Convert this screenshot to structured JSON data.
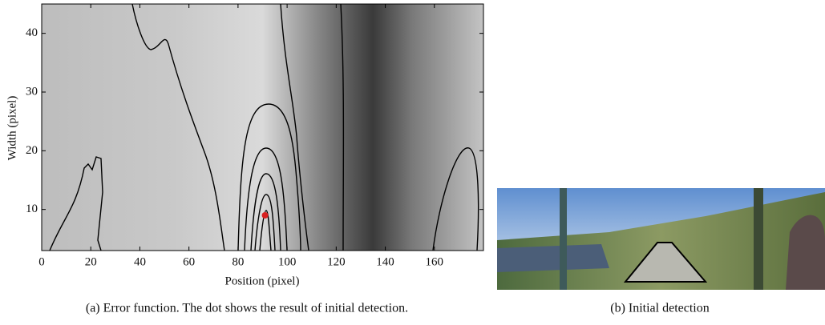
{
  "chart_data": {
    "type": "scatter",
    "xlabel": "Position (pixel)",
    "ylabel": "Width (pixel)",
    "xlim": [
      0,
      180
    ],
    "ylim": [
      3,
      45
    ],
    "xticks": [
      0,
      20,
      40,
      60,
      80,
      100,
      120,
      140,
      160
    ],
    "yticks": [
      10,
      20,
      30,
      40
    ],
    "series": [
      {
        "color": "#d82020",
        "x": [
          91
        ],
        "values": [
          9
        ]
      }
    ]
  },
  "captions": [
    "(a) Error function. The dot shows the result of initial detection.",
    "(b) Initial detection"
  ]
}
